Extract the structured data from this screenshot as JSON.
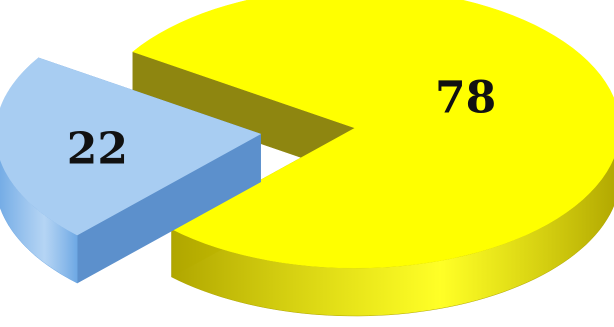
{
  "chart_data": {
    "type": "pie",
    "style": "3d-exploded",
    "title": "",
    "slices": [
      {
        "label": "78",
        "value": 78,
        "color": "#ffff00",
        "side_color": "#b0a600",
        "inner_color": "#8e8610",
        "exploded": false
      },
      {
        "label": "22",
        "value": 22,
        "color": "#a8cdf2",
        "side_color": "#6ea8e4",
        "inner_color": "#5c90cc",
        "exploded": true
      }
    ],
    "legend": "none",
    "grid": false
  }
}
